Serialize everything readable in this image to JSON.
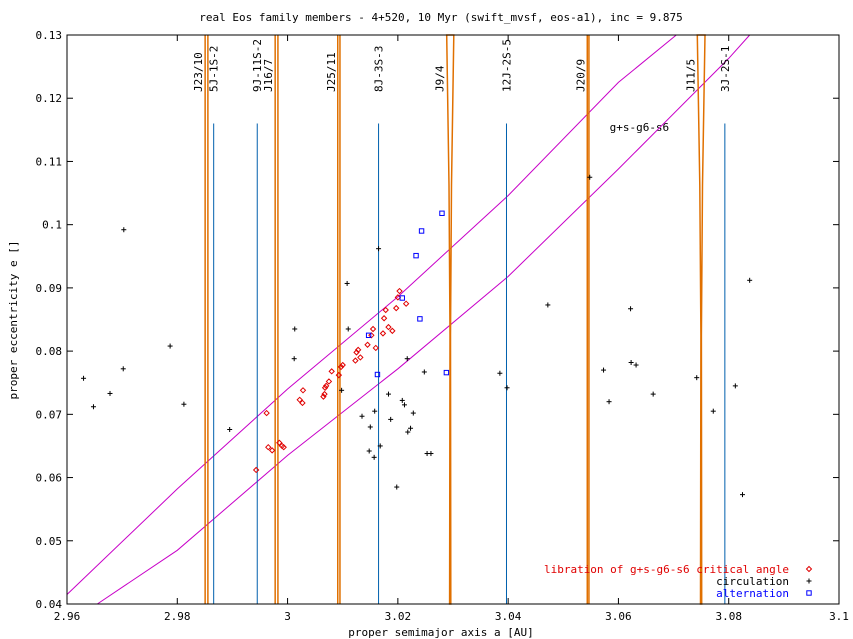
{
  "chart_data": {
    "type": "scatter",
    "title": "real Eos family members - 4+520, 10 Myr (swift_mvsf, eos-a1), inc = 9.875",
    "xlabel": "proper semimajor axis a [AU]",
    "ylabel": "proper eccentricity e []",
    "xlim": [
      2.96,
      3.1
    ],
    "ylim": [
      0.04,
      0.13
    ],
    "xticks": [
      {
        "v": 2.96,
        "label": "2.96"
      },
      {
        "v": 2.98,
        "label": "2.98"
      },
      {
        "v": 3.0,
        "label": "3"
      },
      {
        "v": 3.02,
        "label": "3.02"
      },
      {
        "v": 3.04,
        "label": "3.04"
      },
      {
        "v": 3.06,
        "label": "3.06"
      },
      {
        "v": 3.08,
        "label": "3.08"
      },
      {
        "v": 3.1,
        "label": "3.1"
      }
    ],
    "yticks": [
      {
        "v": 0.04,
        "label": "0.04"
      },
      {
        "v": 0.05,
        "label": "0.05"
      },
      {
        "v": 0.06,
        "label": "0.06"
      },
      {
        "v": 0.07,
        "label": "0.07"
      },
      {
        "v": 0.08,
        "label": "0.08"
      },
      {
        "v": 0.09,
        "label": "0.09"
      },
      {
        "v": 0.1,
        "label": "0.1"
      },
      {
        "v": 0.11,
        "label": "0.11"
      },
      {
        "v": 0.12,
        "label": "0.12"
      },
      {
        "v": 0.13,
        "label": "0.13"
      }
    ],
    "grid": false,
    "legend_position": "bottom-right",
    "resonances_mmr": [
      {
        "label": "J23/10",
        "a": 2.9853,
        "w": 0.0005
      },
      {
        "label": "J16/7",
        "a": 2.998,
        "w": 0.0005
      },
      {
        "label": "J25/11",
        "a": 3.0093,
        "w": 0.0004
      },
      {
        "label": "J9/4",
        "a": 3.0295,
        "w": 0.0013,
        "taper": true
      },
      {
        "label": "J20/9",
        "a": 3.0545,
        "w": 0.0003
      },
      {
        "label": "J11/5",
        "a": 3.075,
        "w": 0.0014,
        "taper": true
      }
    ],
    "resonances_3body": [
      {
        "label": "5J-1S-2",
        "a": 2.9866
      },
      {
        "label": "9J-11S-2",
        "a": 2.9945
      },
      {
        "label": "8J-3S-3",
        "a": 3.0165
      },
      {
        "label": "12J-2S-5",
        "a": 3.0397
      },
      {
        "label": "3J-2S-1",
        "a": 3.0793
      }
    ],
    "secular_resonance": {
      "label": "g+s-g6-s6",
      "upper_boundary": [
        [
          2.96,
          0.0415
        ],
        [
          2.98,
          0.0582
        ],
        [
          3.0,
          0.074
        ],
        [
          3.02,
          0.0886
        ],
        [
          3.04,
          0.1046
        ],
        [
          3.06,
          0.1225
        ],
        [
          3.0705,
          0.13
        ]
      ],
      "lower_boundary": [
        [
          2.9655,
          0.04
        ],
        [
          2.98,
          0.0485
        ],
        [
          3.0,
          0.0635
        ],
        [
          3.02,
          0.0772
        ],
        [
          3.04,
          0.0918
        ],
        [
          3.06,
          0.1088
        ],
        [
          3.08,
          0.1263
        ],
        [
          3.0838,
          0.13
        ]
      ]
    },
    "series": [
      {
        "name": "libration of g+s-g6-s6 critical angle",
        "marker": "diamond",
        "color": "#e00000",
        "points": [
          [
            2.9943,
            0.0612
          ],
          [
            2.9962,
            0.0702
          ],
          [
            2.9965,
            0.0648
          ],
          [
            2.9972,
            0.0643
          ],
          [
            2.9985,
            0.0655
          ],
          [
            2.999,
            0.065
          ],
          [
            2.9993,
            0.0648
          ],
          [
            3.0022,
            0.0723
          ],
          [
            3.0027,
            0.0718
          ],
          [
            3.0028,
            0.0738
          ],
          [
            3.0065,
            0.0728
          ],
          [
            3.0067,
            0.0732
          ],
          [
            3.0068,
            0.0742
          ],
          [
            3.007,
            0.0745
          ],
          [
            3.0075,
            0.0752
          ],
          [
            3.008,
            0.0768
          ],
          [
            3.0093,
            0.0762
          ],
          [
            3.0097,
            0.0775
          ],
          [
            3.01,
            0.0778
          ],
          [
            3.0123,
            0.0785
          ],
          [
            3.0125,
            0.0798
          ],
          [
            3.0128,
            0.0802
          ],
          [
            3.0132,
            0.079
          ],
          [
            3.0145,
            0.081
          ],
          [
            3.0152,
            0.0825
          ],
          [
            3.0155,
            0.0835
          ],
          [
            3.016,
            0.0805
          ],
          [
            3.0173,
            0.0828
          ],
          [
            3.0175,
            0.0852
          ],
          [
            3.0178,
            0.0865
          ],
          [
            3.0183,
            0.0838
          ],
          [
            3.019,
            0.0832
          ],
          [
            3.0197,
            0.0868
          ],
          [
            3.02,
            0.0885
          ],
          [
            3.0203,
            0.0895
          ],
          [
            3.0215,
            0.0875
          ]
        ]
      },
      {
        "name": "circulation",
        "marker": "plus",
        "color": "#000000",
        "points": [
          [
            2.963,
            0.0757
          ],
          [
            2.9648,
            0.0712
          ],
          [
            2.9678,
            0.0733
          ],
          [
            2.9702,
            0.0772
          ],
          [
            2.9703,
            0.0992
          ],
          [
            2.9787,
            0.0808
          ],
          [
            2.9812,
            0.0716
          ],
          [
            2.9895,
            0.0676
          ],
          [
            3.0012,
            0.0788
          ],
          [
            3.0013,
            0.0835
          ],
          [
            3.0098,
            0.0738
          ],
          [
            3.0108,
            0.0907
          ],
          [
            3.011,
            0.0835
          ],
          [
            3.0135,
            0.0697
          ],
          [
            3.015,
            0.068
          ],
          [
            3.0148,
            0.0642
          ],
          [
            3.0157,
            0.0632
          ],
          [
            3.0158,
            0.0705
          ],
          [
            3.0165,
            0.0962
          ],
          [
            3.0168,
            0.065
          ],
          [
            3.0183,
            0.0732
          ],
          [
            3.0187,
            0.0692
          ],
          [
            3.0198,
            0.0585
          ],
          [
            3.0208,
            0.0722
          ],
          [
            3.0212,
            0.0715
          ],
          [
            3.0217,
            0.0788
          ],
          [
            3.0218,
            0.0672
          ],
          [
            3.0223,
            0.0678
          ],
          [
            3.0228,
            0.0702
          ],
          [
            3.0248,
            0.0767
          ],
          [
            3.0253,
            0.0638
          ],
          [
            3.026,
            0.0638
          ],
          [
            3.0385,
            0.0765
          ],
          [
            3.0398,
            0.0742
          ],
          [
            3.0472,
            0.0873
          ],
          [
            3.0548,
            0.1075
          ],
          [
            3.0573,
            0.077
          ],
          [
            3.0583,
            0.072
          ],
          [
            3.0622,
            0.0867
          ],
          [
            3.0623,
            0.0782
          ],
          [
            3.0632,
            0.0778
          ],
          [
            3.0663,
            0.0732
          ],
          [
            3.0742,
            0.0758
          ],
          [
            3.0772,
            0.0705
          ],
          [
            3.0812,
            0.0745
          ],
          [
            3.0825,
            0.0573
          ],
          [
            3.0838,
            0.0912
          ]
        ]
      },
      {
        "name": "alternation",
        "marker": "square",
        "color": "#0000ff",
        "points": [
          [
            3.0147,
            0.0825
          ],
          [
            3.0163,
            0.0763
          ],
          [
            3.0208,
            0.0884
          ],
          [
            3.0233,
            0.0951
          ],
          [
            3.024,
            0.0851
          ],
          [
            3.0243,
            0.099
          ],
          [
            3.028,
            0.1018
          ],
          [
            3.0288,
            0.0766
          ]
        ]
      }
    ]
  }
}
